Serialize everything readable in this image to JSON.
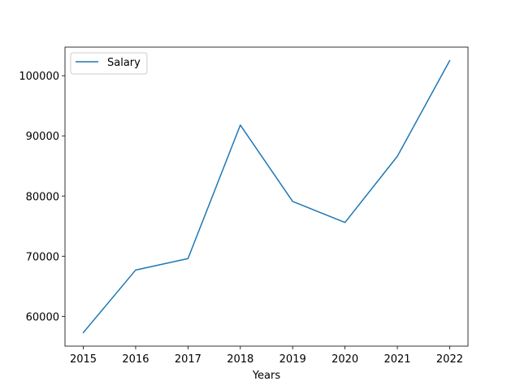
{
  "chart_data": {
    "type": "line",
    "x": [
      2015,
      2016,
      2017,
      2018,
      2019,
      2020,
      2021,
      2022
    ],
    "x_tick_labels": [
      "2015",
      "2016",
      "2017",
      "2018",
      "2019",
      "2020",
      "2021",
      "2022"
    ],
    "series": [
      {
        "name": "Salary",
        "color": "#1f77b4",
        "values": [
          57300,
          67700,
          69600,
          91800,
          79100,
          75600,
          86600,
          102500
        ]
      }
    ],
    "xlabel": "Years",
    "ylabel": "",
    "title": "",
    "xlim": [
      2014.65,
      2022.35
    ],
    "ylim": [
      55050,
      104750
    ],
    "y_ticks": [
      60000,
      70000,
      80000,
      90000,
      100000
    ],
    "y_tick_labels": [
      "60000",
      "70000",
      "80000",
      "90000",
      "100000"
    ],
    "grid": false,
    "legend": "top-left"
  }
}
